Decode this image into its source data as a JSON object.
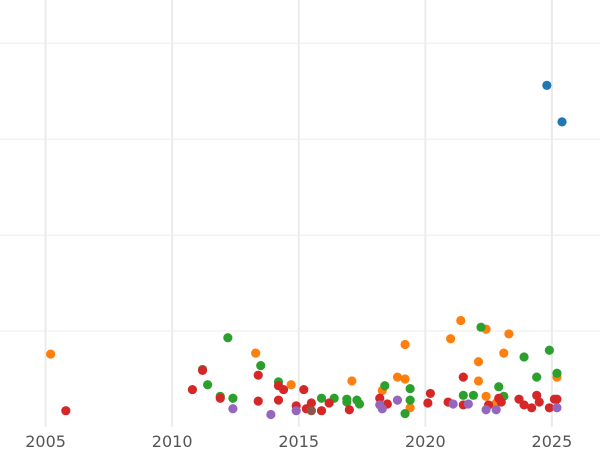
{
  "chart_data": {
    "type": "scatter",
    "title": "",
    "xlabel": "",
    "ylabel": "",
    "xlim": [
      2003.2,
      2026.9
    ],
    "ylim": [
      0,
      4.45
    ],
    "grid": true,
    "x_ticks": [
      2005,
      2010,
      2015,
      2020,
      2025
    ],
    "x_tick_labels": [
      "2005",
      "2010",
      "2015",
      "2020",
      "2025"
    ],
    "y_gridlines": [
      1,
      2,
      3,
      4
    ],
    "series": [
      {
        "color": "#1f77b4",
        "points": [
          [
            2024.8,
            3.56
          ],
          [
            2025.4,
            3.18
          ]
        ]
      },
      {
        "color": "#ff7f0e",
        "points": [
          [
            2005.2,
            0.76
          ],
          [
            2013.3,
            0.77
          ],
          [
            2014.7,
            0.44
          ],
          [
            2017.1,
            0.48
          ],
          [
            2018.3,
            0.38
          ],
          [
            2018.9,
            0.52
          ],
          [
            2019.2,
            0.5
          ],
          [
            2019.2,
            0.86
          ],
          [
            2019.4,
            0.2
          ],
          [
            2021.0,
            0.92
          ],
          [
            2021.4,
            1.11
          ],
          [
            2022.1,
            0.68
          ],
          [
            2022.1,
            0.48
          ],
          [
            2022.4,
            1.02
          ],
          [
            2022.4,
            0.32
          ],
          [
            2023.1,
            0.77
          ],
          [
            2023.3,
            0.97
          ],
          [
            2025.2,
            0.52
          ],
          [
            2022.8,
            0.25
          ]
        ]
      },
      {
        "color": "#2ca02c",
        "points": [
          [
            2012.2,
            0.93
          ],
          [
            2011.2,
            0.6
          ],
          [
            2013.5,
            0.64
          ],
          [
            2011.4,
            0.44
          ],
          [
            2011.9,
            0.32
          ],
          [
            2012.4,
            0.3
          ],
          [
            2014.2,
            0.47
          ],
          [
            2015.9,
            0.3
          ],
          [
            2016.4,
            0.3
          ],
          [
            2016.9,
            0.29
          ],
          [
            2016.9,
            0.26
          ],
          [
            2017.3,
            0.28
          ],
          [
            2017.4,
            0.24
          ],
          [
            2018.4,
            0.43
          ],
          [
            2019.4,
            0.4
          ],
          [
            2019.4,
            0.28
          ],
          [
            2019.2,
            0.14
          ],
          [
            2021.5,
            0.33
          ],
          [
            2021.9,
            0.33
          ],
          [
            2022.2,
            1.04
          ],
          [
            2022.9,
            0.42
          ],
          [
            2023.1,
            0.32
          ],
          [
            2023.9,
            0.73
          ],
          [
            2024.4,
            0.52
          ],
          [
            2024.9,
            0.8
          ],
          [
            2025.2,
            0.56
          ]
        ]
      },
      {
        "color": "#d62728",
        "points": [
          [
            2005.8,
            0.17
          ],
          [
            2010.8,
            0.39
          ],
          [
            2011.2,
            0.59
          ],
          [
            2011.9,
            0.3
          ],
          [
            2013.4,
            0.54
          ],
          [
            2013.4,
            0.27
          ],
          [
            2014.2,
            0.43
          ],
          [
            2014.2,
            0.28
          ],
          [
            2014.4,
            0.39
          ],
          [
            2014.9,
            0.22
          ],
          [
            2015.2,
            0.39
          ],
          [
            2015.3,
            0.19
          ],
          [
            2015.5,
            0.25
          ],
          [
            2015.9,
            0.17
          ],
          [
            2016.2,
            0.25
          ],
          [
            2017.0,
            0.18
          ],
          [
            2018.2,
            0.3
          ],
          [
            2018.3,
            0.21
          ],
          [
            2018.5,
            0.24
          ],
          [
            2020.1,
            0.25
          ],
          [
            2020.2,
            0.35
          ],
          [
            2020.9,
            0.26
          ],
          [
            2021.5,
            0.52
          ],
          [
            2021.5,
            0.23
          ],
          [
            2022.5,
            0.23
          ],
          [
            2022.9,
            0.3
          ],
          [
            2023.0,
            0.26
          ],
          [
            2023.7,
            0.29
          ],
          [
            2023.9,
            0.23
          ],
          [
            2024.2,
            0.2
          ],
          [
            2024.4,
            0.33
          ],
          [
            2024.5,
            0.26
          ],
          [
            2024.9,
            0.2
          ],
          [
            2025.1,
            0.29
          ],
          [
            2025.2,
            0.29
          ]
        ]
      },
      {
        "color": "#9467bd",
        "points": [
          [
            2012.4,
            0.19
          ],
          [
            2013.9,
            0.13
          ],
          [
            2014.9,
            0.17
          ],
          [
            2018.2,
            0.23
          ],
          [
            2018.3,
            0.19
          ],
          [
            2018.9,
            0.28
          ],
          [
            2021.1,
            0.24
          ],
          [
            2021.7,
            0.24
          ],
          [
            2022.4,
            0.18
          ],
          [
            2022.8,
            0.18
          ],
          [
            2025.2,
            0.2
          ]
        ]
      },
      {
        "color": "#8c564b",
        "points": [
          [
            2015.5,
            0.17
          ]
        ]
      }
    ]
  }
}
